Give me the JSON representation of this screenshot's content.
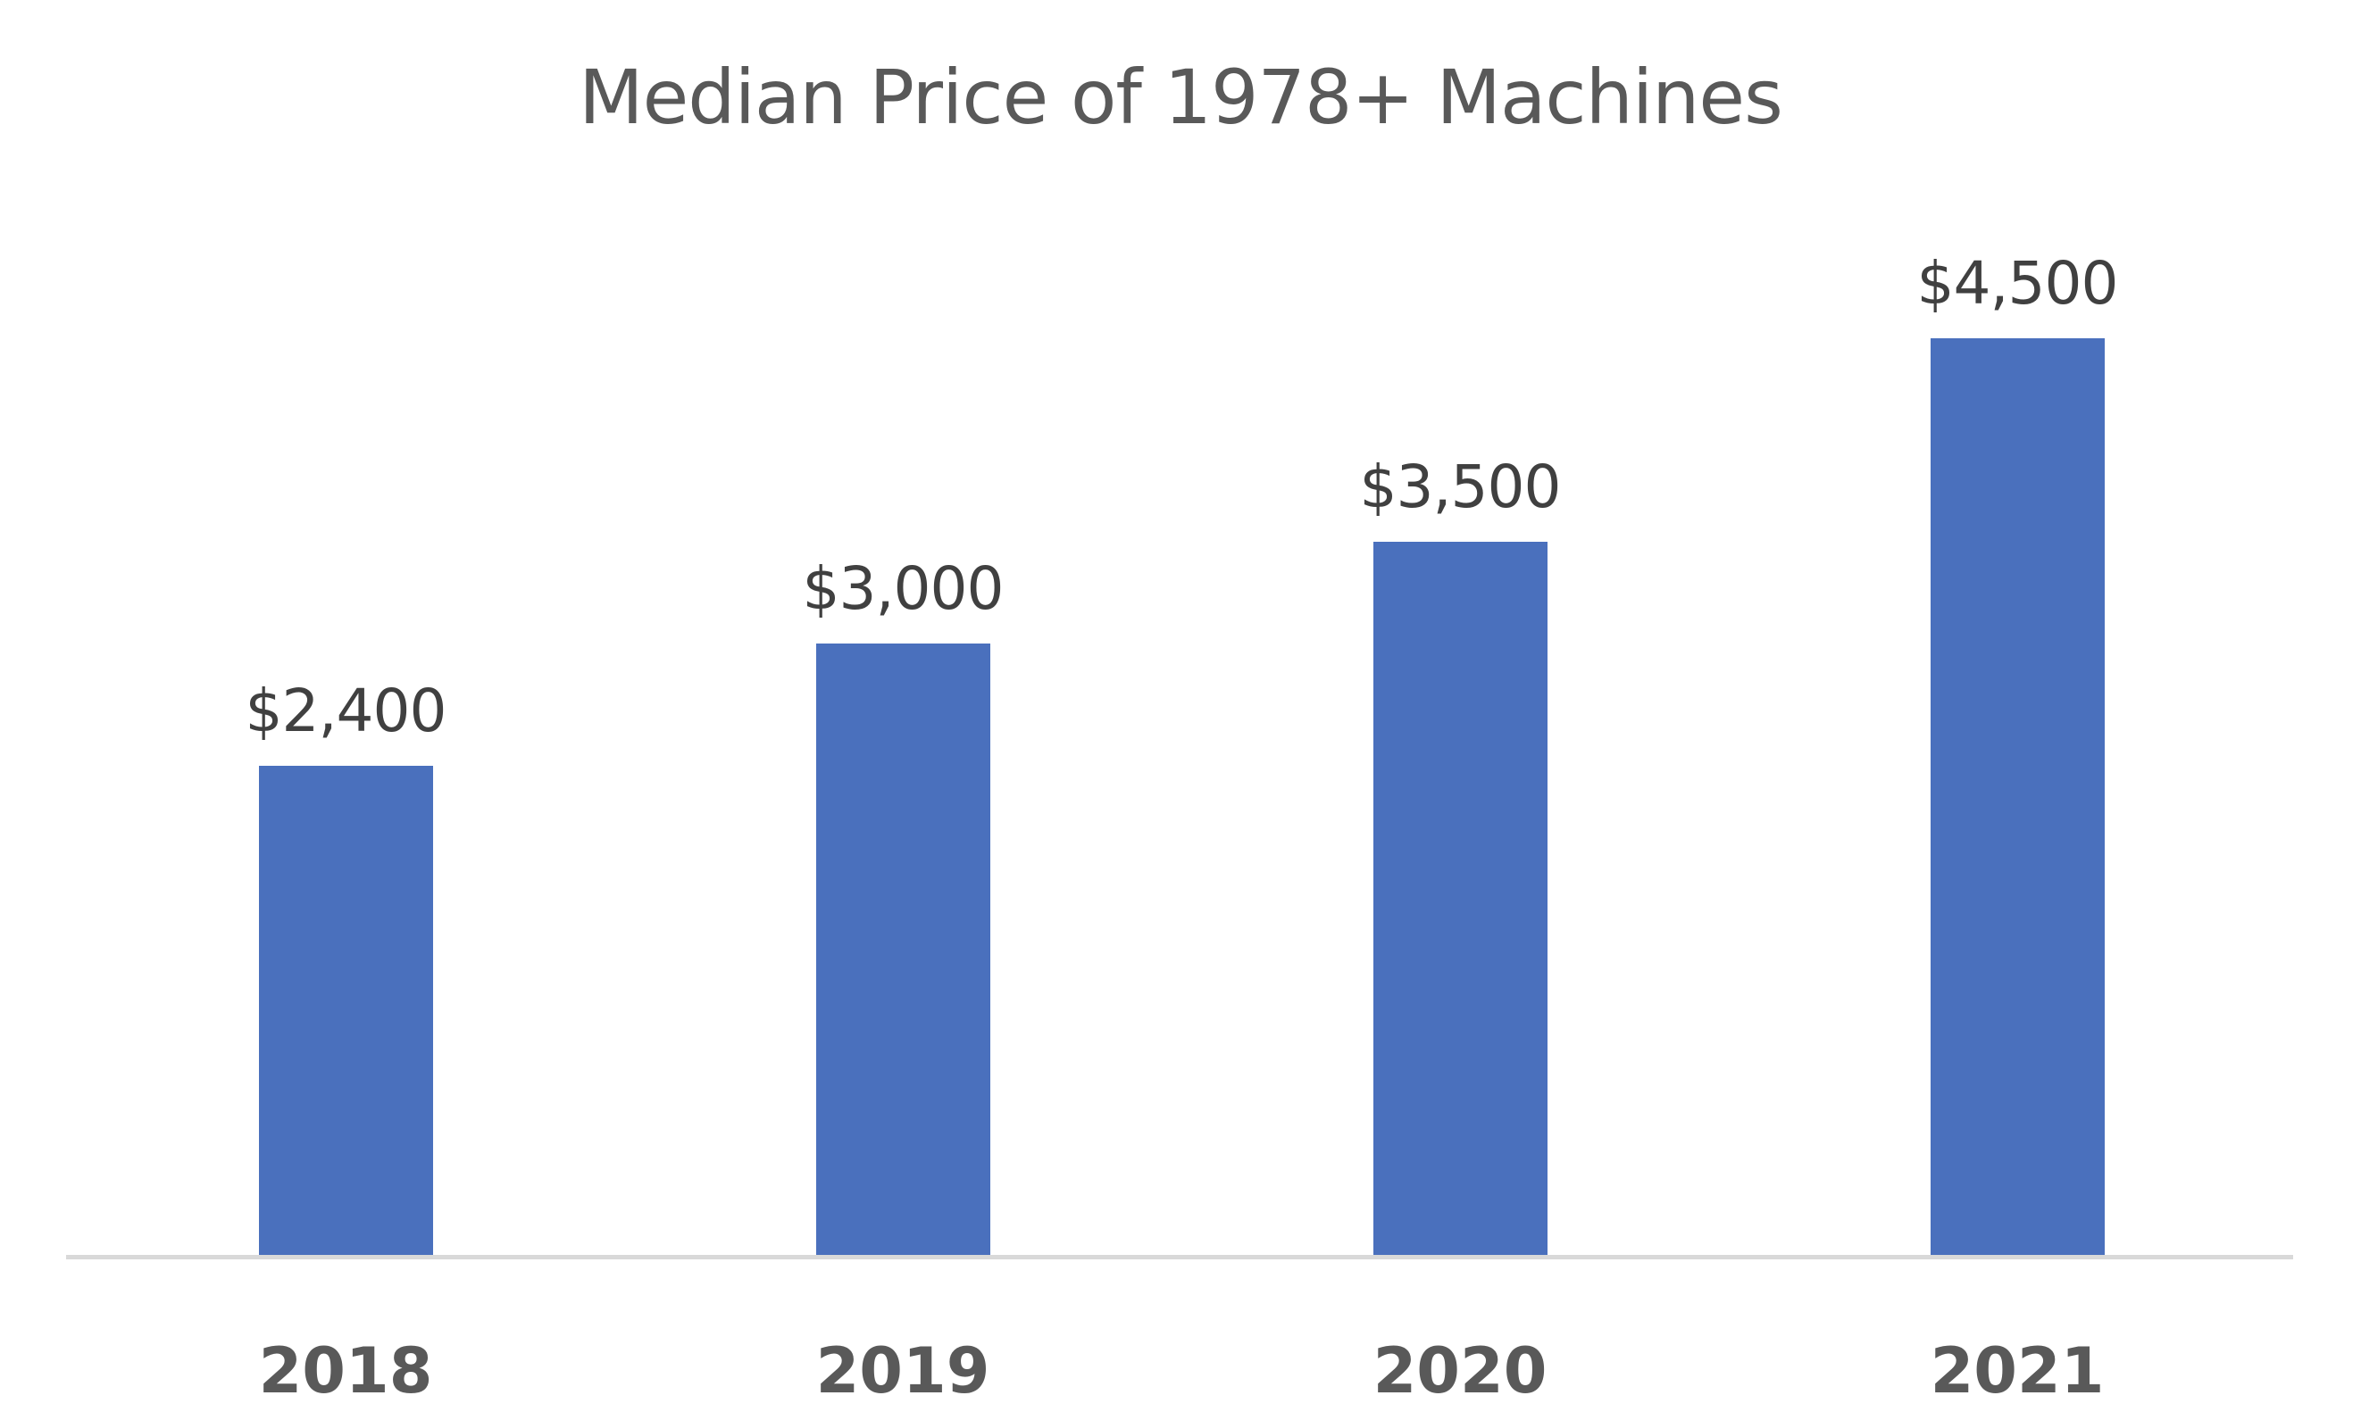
{
  "chart_data": {
    "type": "bar",
    "title": "Median Price of 1978+ Machines",
    "categories": [
      "2018",
      "2019",
      "2020",
      "2021"
    ],
    "values": [
      2400,
      3000,
      3500,
      4500
    ],
    "value_labels": [
      "$2,400",
      "$3,000",
      "$3,500",
      "$4,500"
    ],
    "xlabel": "",
    "ylabel": "",
    "ylim": [
      0,
      4500
    ],
    "grid": false,
    "legend": "none",
    "bar_color": "#4a70bd",
    "axis_color": "#d9d9d9"
  }
}
